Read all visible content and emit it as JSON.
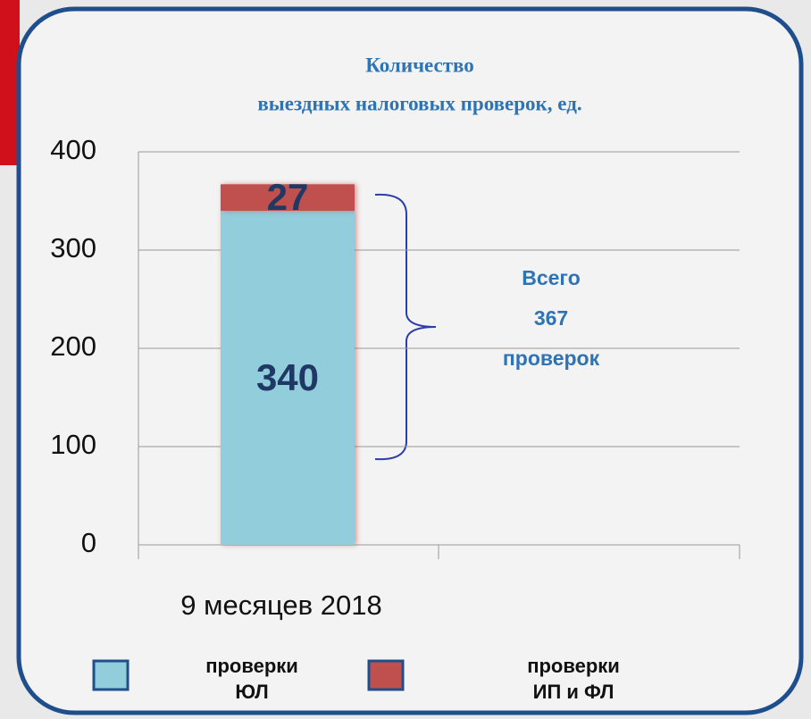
{
  "chart_data": {
    "type": "stacked_bar",
    "title": [
      "Количество",
      "выездных налоговых проверок, ед."
    ],
    "categories": [
      "9 месяцев 2018"
    ],
    "series": [
      {
        "name": "проверки ЮЛ",
        "color": "#92cddc",
        "values": [
          340
        ]
      },
      {
        "name": "проверки ИП и ФЛ",
        "color": "#c0504d",
        "values": [
          27
        ]
      }
    ],
    "annotation": [
      "Всего",
      "367",
      "проверок"
    ],
    "ylim": [
      0,
      400
    ],
    "yticks": [
      0,
      100,
      200,
      300,
      400
    ],
    "grid": true
  }
}
